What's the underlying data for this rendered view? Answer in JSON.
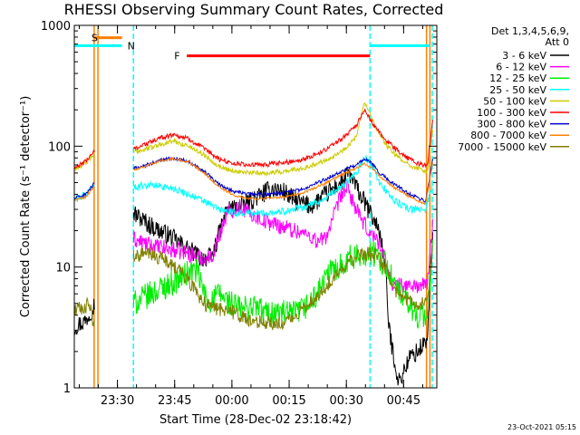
{
  "chart_data": {
    "type": "line",
    "title": "RHESSI Observing Summary Count Rates, Corrected",
    "ylabel": "Corrected Count Rate (s⁻¹ detector⁻¹)",
    "xlabel": "Start Time (28-Dec-02 23:18:42)",
    "yscale": "log",
    "ylim": [
      1,
      1000
    ],
    "xlim_minutes": [
      0,
      95
    ],
    "x_ticks": [
      {
        "t": 11.3,
        "label": "23:30"
      },
      {
        "t": 26.3,
        "label": "23:45"
      },
      {
        "t": 41.3,
        "label": "00:00"
      },
      {
        "t": 56.3,
        "label": "00:15"
      },
      {
        "t": 71.3,
        "label": "00:30"
      },
      {
        "t": 86.3,
        "label": "00:45"
      }
    ],
    "y_ticks": [
      {
        "v": 1,
        "label": "1"
      },
      {
        "v": 10,
        "label": "10"
      },
      {
        "v": 100,
        "label": "100"
      },
      {
        "v": 1000,
        "label": "1000"
      }
    ],
    "legend": {
      "header_line1": "Det 1,3,4,5,6,9,",
      "header_line2": "Att 0",
      "placement": "top-right outside"
    },
    "series": [
      {
        "name": "3 - 6 keV",
        "color": "#000000",
        "points": [
          [
            0,
            3.2
          ],
          [
            3,
            3.6
          ],
          [
            6,
            5.5
          ],
          [
            15.5,
            28
          ],
          [
            20,
            22
          ],
          [
            25,
            18
          ],
          [
            30,
            14
          ],
          [
            33,
            12
          ],
          [
            36,
            12
          ],
          [
            40,
            30
          ],
          [
            44,
            32
          ],
          [
            48,
            38
          ],
          [
            52,
            45
          ],
          [
            55,
            42
          ],
          [
            58,
            35
          ],
          [
            62,
            32
          ],
          [
            66,
            40
          ],
          [
            70,
            50
          ],
          [
            72,
            60
          ],
          [
            74,
            45
          ],
          [
            77,
            30
          ],
          [
            80,
            20
          ],
          [
            81.5,
            10
          ],
          [
            82.5,
            3
          ],
          [
            85,
            1.1
          ],
          [
            88,
            1.8
          ],
          [
            90,
            2.0
          ],
          [
            92.5,
            2.5
          ],
          [
            94,
            20
          ]
        ]
      },
      {
        "name": "6 - 12 keV",
        "color": "#ff00ff",
        "points": [
          [
            15.5,
            17
          ],
          [
            20,
            15
          ],
          [
            25,
            14
          ],
          [
            30,
            13
          ],
          [
            33,
            12
          ],
          [
            36,
            12
          ],
          [
            40,
            28
          ],
          [
            43,
            32
          ],
          [
            46,
            28
          ],
          [
            50,
            24
          ],
          [
            54,
            22
          ],
          [
            58,
            20
          ],
          [
            62,
            18
          ],
          [
            64,
            16
          ],
          [
            66,
            18
          ],
          [
            68,
            26
          ],
          [
            70,
            40
          ],
          [
            71.5,
            45
          ],
          [
            73,
            35
          ],
          [
            75,
            25
          ],
          [
            77,
            20
          ],
          [
            80,
            16
          ],
          [
            82,
            10
          ],
          [
            83.5,
            7
          ],
          [
            86,
            7
          ],
          [
            92.5,
            7
          ],
          [
            94,
            25
          ]
        ]
      },
      {
        "name": "12 - 25 keV",
        "color": "#00ee00",
        "points": [
          [
            15.5,
            5
          ],
          [
            18,
            5.5
          ],
          [
            22,
            6.5
          ],
          [
            26,
            7.5
          ],
          [
            30,
            9
          ],
          [
            32,
            9.5
          ],
          [
            35,
            5
          ],
          [
            38,
            6
          ],
          [
            41,
            5
          ],
          [
            44,
            4.5
          ],
          [
            47,
            4.8
          ],
          [
            50,
            4.2
          ],
          [
            54,
            4.2
          ],
          [
            57,
            4.0
          ],
          [
            60,
            4.5
          ],
          [
            63,
            5.5
          ],
          [
            65,
            7
          ],
          [
            67,
            9
          ],
          [
            69,
            10
          ],
          [
            72,
            12
          ],
          [
            74,
            12
          ],
          [
            76,
            13
          ],
          [
            78,
            13
          ],
          [
            80,
            12
          ],
          [
            82,
            10
          ],
          [
            84,
            7
          ],
          [
            87,
            5
          ],
          [
            90,
            4
          ],
          [
            92.5,
            4
          ],
          [
            94,
            15
          ]
        ]
      },
      {
        "name": "25 - 50 keV",
        "color": "#00ffff",
        "points": [
          [
            0,
            36
          ],
          [
            3,
            40
          ],
          [
            5,
            48
          ],
          [
            15.5,
            45
          ],
          [
            18,
            48
          ],
          [
            22,
            47
          ],
          [
            26,
            45
          ],
          [
            30,
            40
          ],
          [
            34,
            35
          ],
          [
            38,
            30
          ],
          [
            42,
            28
          ],
          [
            46,
            28
          ],
          [
            50,
            28
          ],
          [
            55,
            29
          ],
          [
            60,
            31
          ],
          [
            65,
            36
          ],
          [
            70,
            46
          ],
          [
            74,
            60
          ],
          [
            76,
            80
          ],
          [
            78,
            70
          ],
          [
            80,
            50
          ],
          [
            84,
            35
          ],
          [
            88,
            30
          ],
          [
            92,
            30
          ],
          [
            94,
            50
          ]
        ]
      },
      {
        "name": "50 - 100 keV",
        "color": "#cccc00",
        "points": [
          [
            0,
            65
          ],
          [
            3,
            72
          ],
          [
            5,
            85
          ],
          [
            15.5,
            90
          ],
          [
            19,
            95
          ],
          [
            23,
            105
          ],
          [
            26,
            110
          ],
          [
            30,
            100
          ],
          [
            34,
            85
          ],
          [
            38,
            68
          ],
          [
            42,
            62
          ],
          [
            46,
            60
          ],
          [
            50,
            60
          ],
          [
            55,
            62
          ],
          [
            60,
            66
          ],
          [
            65,
            75
          ],
          [
            70,
            90
          ],
          [
            74,
            120
          ],
          [
            76,
            230
          ],
          [
            77,
            200
          ],
          [
            79,
            140
          ],
          [
            82,
            100
          ],
          [
            86,
            75
          ],
          [
            90,
            65
          ],
          [
            92.5,
            62
          ],
          [
            94,
            140
          ]
        ]
      },
      {
        "name": "100 - 300 keV",
        "color": "#ff0000",
        "points": [
          [
            0,
            65
          ],
          [
            3,
            75
          ],
          [
            5,
            90
          ],
          [
            15.5,
            95
          ],
          [
            19,
            105
          ],
          [
            23,
            118
          ],
          [
            26,
            125
          ],
          [
            30,
            115
          ],
          [
            34,
            95
          ],
          [
            38,
            78
          ],
          [
            42,
            72
          ],
          [
            46,
            70
          ],
          [
            50,
            70
          ],
          [
            55,
            73
          ],
          [
            60,
            78
          ],
          [
            65,
            90
          ],
          [
            70,
            115
          ],
          [
            74,
            150
          ],
          [
            76,
            195
          ],
          [
            77,
            180
          ],
          [
            79,
            140
          ],
          [
            82,
            110
          ],
          [
            86,
            85
          ],
          [
            90,
            72
          ],
          [
            92.5,
            68
          ],
          [
            94,
            170
          ]
        ]
      },
      {
        "name": "300 - 800 keV",
        "color": "#0000cc",
        "points": [
          [
            0,
            37
          ],
          [
            3,
            40
          ],
          [
            5,
            48
          ],
          [
            15.5,
            65
          ],
          [
            19,
            70
          ],
          [
            23,
            77
          ],
          [
            26,
            80
          ],
          [
            30,
            75
          ],
          [
            34,
            62
          ],
          [
            38,
            48
          ],
          [
            42,
            42
          ],
          [
            46,
            40
          ],
          [
            50,
            40
          ],
          [
            55,
            41
          ],
          [
            60,
            44
          ],
          [
            65,
            52
          ],
          [
            70,
            62
          ],
          [
            74,
            70
          ],
          [
            76,
            78
          ],
          [
            78,
            72
          ],
          [
            80,
            60
          ],
          [
            84,
            48
          ],
          [
            88,
            40
          ],
          [
            92,
            35
          ],
          [
            94,
            80
          ]
        ]
      },
      {
        "name": "800 - 7000 keV",
        "color": "#ff7f00",
        "points": [
          [
            0,
            36
          ],
          [
            3,
            38
          ],
          [
            5,
            46
          ],
          [
            15.5,
            64
          ],
          [
            19,
            69
          ],
          [
            23,
            76
          ],
          [
            26,
            79
          ],
          [
            30,
            74
          ],
          [
            34,
            60
          ],
          [
            38,
            46
          ],
          [
            42,
            39
          ],
          [
            46,
            37
          ],
          [
            50,
            37
          ],
          [
            55,
            38
          ],
          [
            60,
            41
          ],
          [
            65,
            48
          ],
          [
            70,
            58
          ],
          [
            74,
            66
          ],
          [
            76,
            72
          ],
          [
            78,
            66
          ],
          [
            80,
            56
          ],
          [
            84,
            45
          ],
          [
            88,
            38
          ],
          [
            92,
            33
          ],
          [
            94,
            75
          ]
        ]
      },
      {
        "name": "7000 - 15000 keV",
        "color": "#808000",
        "points": [
          [
            0,
            4.5
          ],
          [
            2,
            4.5
          ],
          [
            4,
            5
          ],
          [
            5,
            3.3
          ],
          [
            15.5,
            12
          ],
          [
            19,
            13
          ],
          [
            22,
            12
          ],
          [
            25,
            11
          ],
          [
            28,
            9
          ],
          [
            31,
            7
          ],
          [
            34,
            5
          ],
          [
            37,
            4.5
          ],
          [
            40,
            4.5
          ],
          [
            43,
            4
          ],
          [
            46,
            3.5
          ],
          [
            50,
            3.5
          ],
          [
            54,
            3.4
          ],
          [
            57,
            3.7
          ],
          [
            60,
            4.5
          ],
          [
            63,
            5.5
          ],
          [
            66,
            7
          ],
          [
            69,
            9
          ],
          [
            72,
            11
          ],
          [
            75,
            12.5
          ],
          [
            78,
            13
          ],
          [
            80,
            12
          ],
          [
            82,
            9
          ],
          [
            84,
            6.5
          ],
          [
            87,
            5.5
          ],
          [
            90,
            5
          ],
          [
            92.5,
            5
          ],
          [
            94,
            15
          ]
        ]
      }
    ],
    "annotations": {
      "S": {
        "label": "S",
        "t_start": 5.2,
        "t_end": 12.5,
        "level": 790,
        "color": "#ff7f00"
      },
      "N_left": {
        "label": "N",
        "t_start": 0,
        "t_end": 12.5,
        "level": 680,
        "color": "#00ffff"
      },
      "N_right": {
        "t_start": 77.5,
        "t_end": 93.2,
        "level": 680,
        "color": "#00ffff"
      },
      "F": {
        "label": "F",
        "t_start": 29.5,
        "t_end": 77.5,
        "level": 560,
        "color": "#ff0000"
      },
      "orange_lines": [
        5.2,
        6.2,
        92.3,
        93.2
      ],
      "cyan_lines": [
        15.5,
        77.5,
        93.8
      ]
    }
  },
  "footer": {
    "timestamp": "23-Oct-2021 05:15"
  }
}
